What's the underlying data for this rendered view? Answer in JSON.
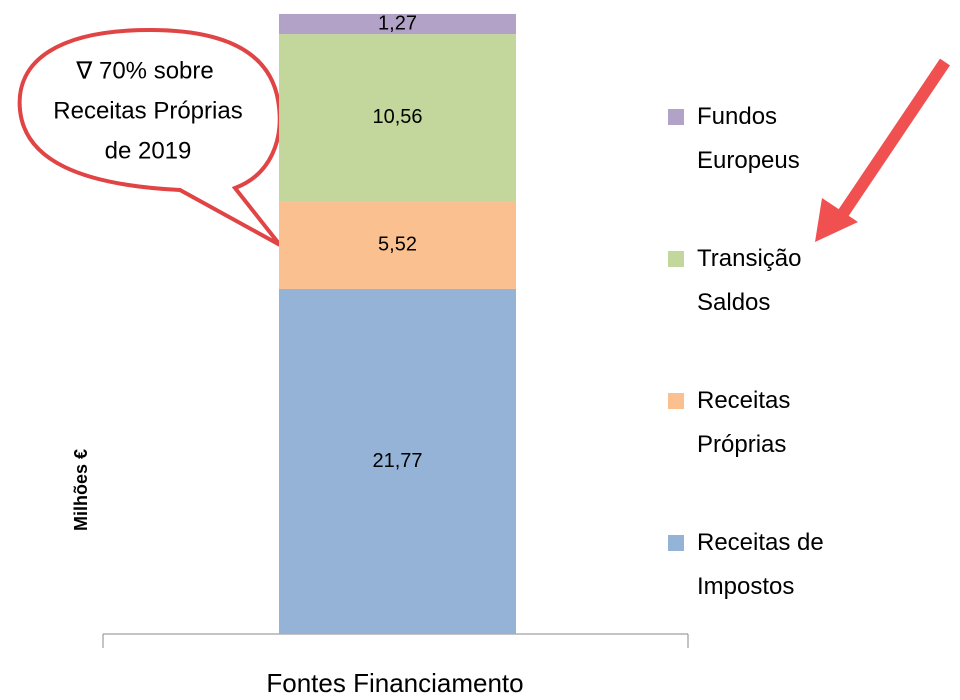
{
  "chart_data": {
    "type": "stacked_bar",
    "categories": [
      "Fontes Financiamento"
    ],
    "y_label": "Milhões €",
    "annotation": [
      "∇ 70% sobre",
      "Receitas Próprias",
      "de 2019"
    ],
    "ylim": [
      0,
      40
    ],
    "series": [
      {
        "name": "Receitas de Impostos",
        "color": "#95b3d7",
        "values": [
          21.77
        ],
        "value_labels": [
          "21,77"
        ]
      },
      {
        "name": "Receitas Próprias",
        "color": "#fac090",
        "values": [
          5.52
        ],
        "value_labels": [
          "5,52"
        ]
      },
      {
        "name": "Transição Saldos",
        "color": "#c3d69b",
        "values": [
          10.56
        ],
        "value_labels": [
          "10,56"
        ]
      },
      {
        "name": "Fundos Europeus",
        "color": "#b3a2c7",
        "values": [
          1.27
        ],
        "value_labels": [
          "1,27"
        ]
      }
    ]
  }
}
